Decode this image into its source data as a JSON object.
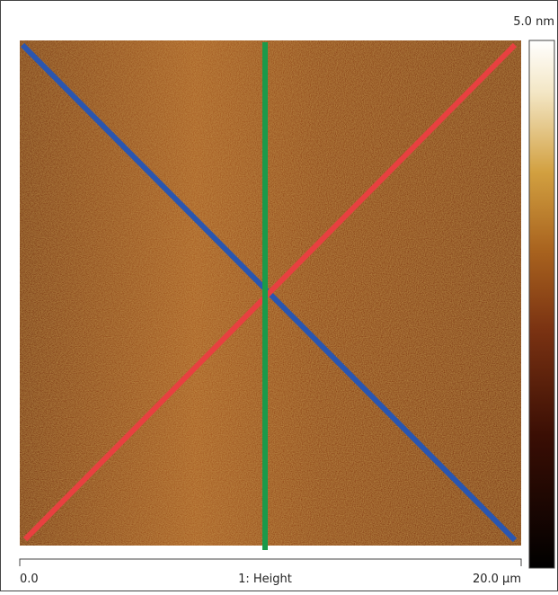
{
  "scale_bar": {
    "max_label": "5.0 nm"
  },
  "axis": {
    "start_label": "0.0",
    "channel_label": "1: Height",
    "end_label": "20.0 µm"
  }
}
